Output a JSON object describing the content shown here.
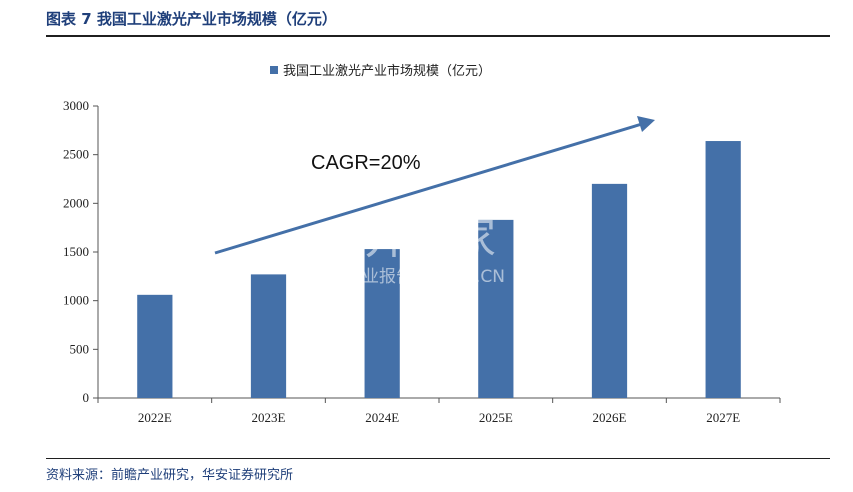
{
  "figure_title": "图表 7 我国工业激光产业市场规模（亿元）",
  "source_note": "资料来源：前瞻产业研究，华安证券研究所",
  "watermark": {
    "main": "并购家",
    "sub": "行业报告 IPOIPO.CN"
  },
  "colors": {
    "bar": "#4470a8",
    "arrow": "#4470a8",
    "title": "#1f3f7a"
  },
  "chart_data": {
    "type": "bar",
    "categories": [
      "2022E",
      "2023E",
      "2024E",
      "2025E",
      "2026E",
      "2027E"
    ],
    "series": [
      {
        "name": "我国工业激光产业市场规模（亿元）",
        "values": [
          1060,
          1270,
          1530,
          1830,
          2200,
          2640
        ]
      }
    ],
    "ylim": [
      0,
      3000
    ],
    "yticks": [
      0,
      500,
      1000,
      1500,
      2000,
      2500,
      3000
    ],
    "legend_position": "top-center",
    "grid": false,
    "annotation": "CAGR=20%"
  }
}
